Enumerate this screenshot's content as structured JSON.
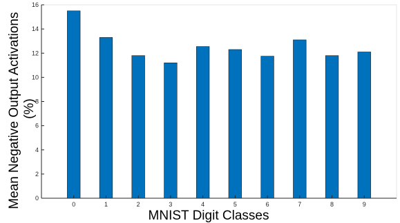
{
  "chart_data": {
    "type": "bar",
    "title": "",
    "xlabel": "MNIST Digit Classes",
    "ylabel": [
      "Mean Negative Output Activations",
      "(%)"
    ],
    "categories": [
      "0",
      "1",
      "2",
      "3",
      "4",
      "5",
      "6",
      "7",
      "8",
      "9"
    ],
    "values": [
      15.5,
      13.3,
      11.8,
      11.2,
      12.55,
      12.3,
      11.75,
      13.1,
      11.8,
      12.1
    ],
    "ylim": [
      0,
      16
    ],
    "yticks": [
      0,
      2,
      4,
      6,
      8,
      10,
      12,
      14,
      16
    ],
    "xlim": [
      -1,
      10
    ],
    "grid": false,
    "legend": "none",
    "colors": {
      "bar": "#0072BD",
      "bar_edge": "#1f1f1f",
      "axis": "#262626"
    }
  }
}
